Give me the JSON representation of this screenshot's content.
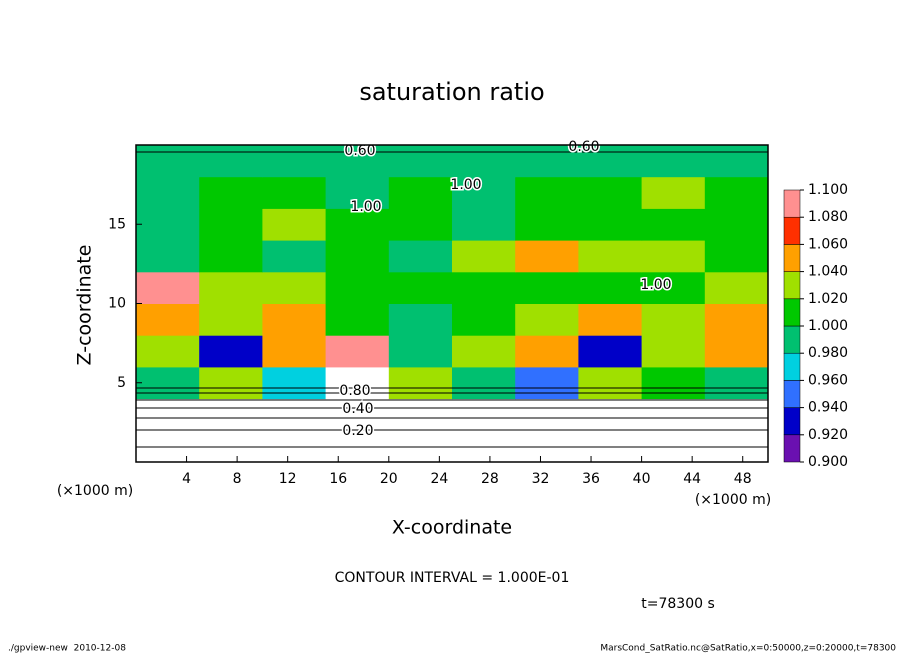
{
  "chart_data": {
    "type": "heatmap",
    "title": "saturation ratio",
    "x_label": "X-coordinate",
    "y_label": "Z-coordinate",
    "x_unit": "(×1000 m)",
    "y_unit": "(×1000 m)",
    "xlim": [
      0,
      50
    ],
    "ylim": [
      0,
      20
    ],
    "xticks": [
      4,
      8,
      12,
      16,
      20,
      24,
      28,
      32,
      36,
      40,
      44,
      48
    ],
    "yticks": [
      5,
      10,
      15
    ],
    "x": [
      0,
      5,
      10,
      15,
      20,
      25,
      30,
      35,
      40,
      45,
      50
    ],
    "y": [
      0,
      2,
      4,
      6,
      8,
      10,
      12,
      14,
      16,
      18,
      20
    ],
    "z": [
      [
        0.2,
        0.2,
        0.2,
        0.2,
        0.2,
        0.2,
        0.2,
        0.2,
        0.2,
        0.2
      ],
      [
        0.45,
        0.45,
        0.45,
        0.45,
        0.45,
        0.45,
        0.45,
        0.45,
        0.45,
        0.45
      ],
      [
        0.99,
        1.04,
        0.97,
        0.8,
        1.03,
        1.0,
        0.96,
        1.04,
        1.02,
        1.0
      ],
      [
        1.04,
        0.94,
        1.06,
        1.1,
        1.0,
        1.03,
        1.06,
        0.94,
        1.04,
        1.06
      ],
      [
        1.06,
        1.03,
        1.05,
        1.02,
        1.0,
        1.02,
        1.04,
        1.06,
        1.03,
        1.05
      ],
      [
        1.1,
        1.04,
        1.03,
        1.02,
        1.02,
        1.01,
        1.02,
        1.01,
        1.01,
        1.03
      ],
      [
        1.0,
        1.01,
        1.0,
        1.01,
        1.0,
        1.03,
        1.05,
        1.04,
        1.03,
        1.02
      ],
      [
        1.0,
        1.01,
        1.04,
        1.02,
        1.01,
        1.0,
        1.01,
        1.02,
        1.01,
        1.01
      ],
      [
        1.0,
        1.02,
        1.01,
        1.0,
        1.01,
        1.0,
        1.01,
        1.02,
        1.04,
        1.02
      ],
      [
        1.0,
        1.0,
        1.0,
        1.0,
        1.0,
        1.0,
        1.0,
        1.0,
        1.0,
        1.0
      ]
    ],
    "colorbar": {
      "levels": [
        {
          "value": 0.9,
          "label": "0.900"
        },
        {
          "value": 0.92,
          "label": "0.920"
        },
        {
          "value": 0.94,
          "label": "0.940"
        },
        {
          "value": 0.96,
          "label": "0.960"
        },
        {
          "value": 0.98,
          "label": "0.980"
        },
        {
          "value": 1.0,
          "label": "1.000"
        },
        {
          "value": 1.02,
          "label": "1.020"
        },
        {
          "value": 1.04,
          "label": "1.040"
        },
        {
          "value": 1.06,
          "label": "1.060"
        },
        {
          "value": 1.08,
          "label": "1.080"
        },
        {
          "value": 1.1,
          "label": "1.100"
        }
      ],
      "colors": [
        "#6a10b0",
        "#0000c8",
        "#3070ff",
        "#00d0e0",
        "#00c070",
        "#00c800",
        "#a0e000",
        "#ffa000",
        "#ff3000",
        "#ff9090"
      ]
    },
    "contour_labels": [
      "0.60",
      "0.60",
      "1.00",
      "1.00",
      "1.00",
      "0.80",
      "0.40",
      "0.20"
    ],
    "contour_interval": "CONTOUR INTERVAL = 1.000E-01",
    "time_label": "t=78300 s",
    "footer_left": "./gpview-new  2010-12-08",
    "footer_right": "MarsCond_SatRatio.nc@SatRatio,x=0:50000,z=0:20000,t=78300"
  }
}
